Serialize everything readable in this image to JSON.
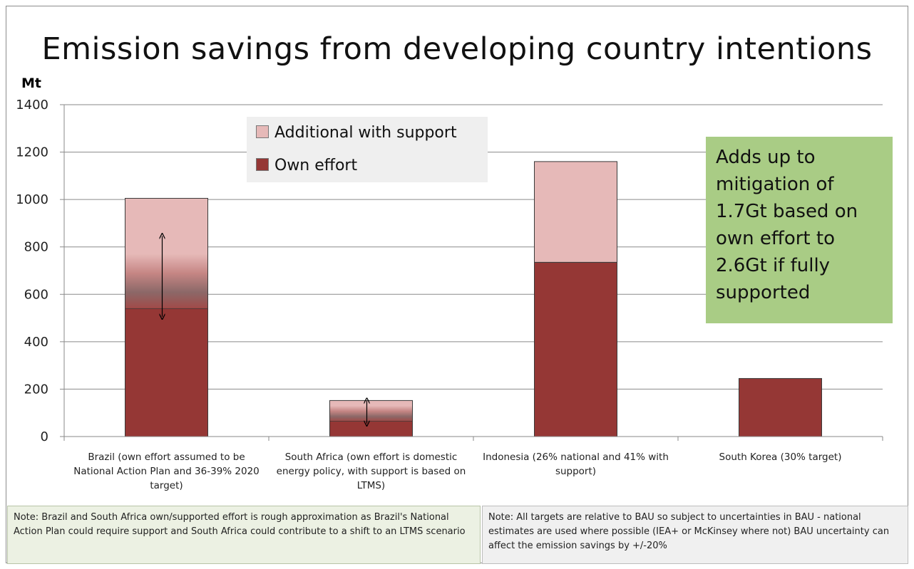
{
  "title": "Emission savings from developing country  intentions",
  "ylabel": "Mt",
  "legend": {
    "items": [
      {
        "label": "Additional with support",
        "color": "#e6b9b8"
      },
      {
        "label": "Own effort",
        "color": "#953735"
      }
    ]
  },
  "callout": {
    "text": "Adds up to mitigation of 1.7Gt based on own effort to 2.6Gt if fully supported",
    "lines": [
      "Adds up to",
      "mitigation of",
      "1.7Gt based on",
      "own effort to",
      "2.6Gt if fully",
      "supported"
    ]
  },
  "notes": {
    "left": "Note: Brazil and South Africa own/supported effort  is rough approximation as Brazil's  National Action Plan could require support and South Africa could contribute to a shift to an LTMS scenario",
    "right": "Note: All targets are relative to BAU so subject to uncertainties in BAU - national estimates are used where possible  (IEA+ or  McKinsey where not) BAU uncertainty can affect the emission savings by +/-20%"
  },
  "chart_data": {
    "type": "bar",
    "stacked": true,
    "title": "Emission savings from developing country  intentions",
    "ylabel": "Mt",
    "xlabel": "",
    "ylim": [
      0,
      1400
    ],
    "yticks": [
      0,
      200,
      400,
      600,
      800,
      1000,
      1200,
      1400
    ],
    "grid": true,
    "legend_position": "top-left",
    "categories": [
      "Brazil (own effort assumed to be National Action Plan and 36-39% 2020 target)",
      "South Africa (own effort is domestic energy policy, with support is based on LTMS)",
      "Indonesia (26% national and 41% with support)",
      "South Korea (30% target)"
    ],
    "series": [
      {
        "name": "Own effort",
        "values": [
          540,
          65,
          735,
          245
        ],
        "color": "#953735"
      },
      {
        "name": "Additional with support",
        "values": [
          465,
          87,
          425,
          0
        ],
        "color": "#e6b9b8"
      }
    ],
    "uncertainty_bands": [
      {
        "category_index": 0,
        "low": 540,
        "high": 770
      },
      {
        "category_index": 1,
        "low": 65,
        "high": 130
      }
    ]
  }
}
